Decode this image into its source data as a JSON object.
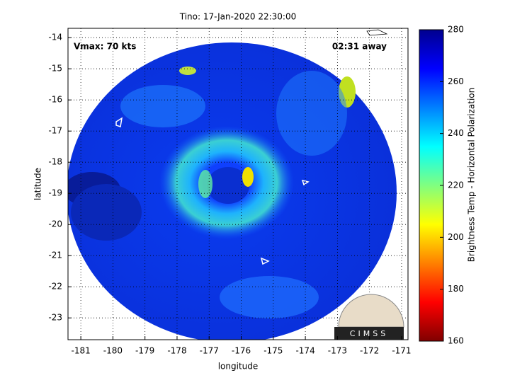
{
  "chart_data": {
    "type": "image",
    "title": "Tino: 17-Jan-2020 22:30:00",
    "x_label": "longitude",
    "y_label": "latitude",
    "annotations": [
      "Vmax: 70 kts",
      "02:31 away"
    ],
    "logo": "CIMSS",
    "xlim": [
      -181.4,
      -170.8
    ],
    "xticks": [
      -181,
      -180,
      -179,
      -178,
      -177,
      -176,
      -175,
      -174,
      -173,
      -172,
      -171
    ],
    "ylim": [
      -23.7,
      -13.7
    ],
    "yticks": [
      -14,
      -15,
      -16,
      -17,
      -18,
      -19,
      -20,
      -21,
      -22,
      -23
    ],
    "grid": true,
    "colorbar": {
      "label": "Brightness Temp - Horizontal Polarization",
      "lim": [
        160,
        280
      ],
      "ticks": [
        160,
        180,
        200,
        220,
        240,
        260,
        280
      ],
      "colormap": [
        "#800000",
        "#ff0000",
        "#ff8000",
        "#ffff00",
        "#80ff80",
        "#00ffff",
        "#0080ff",
        "#0000ff",
        "#00008f"
      ]
    }
  }
}
